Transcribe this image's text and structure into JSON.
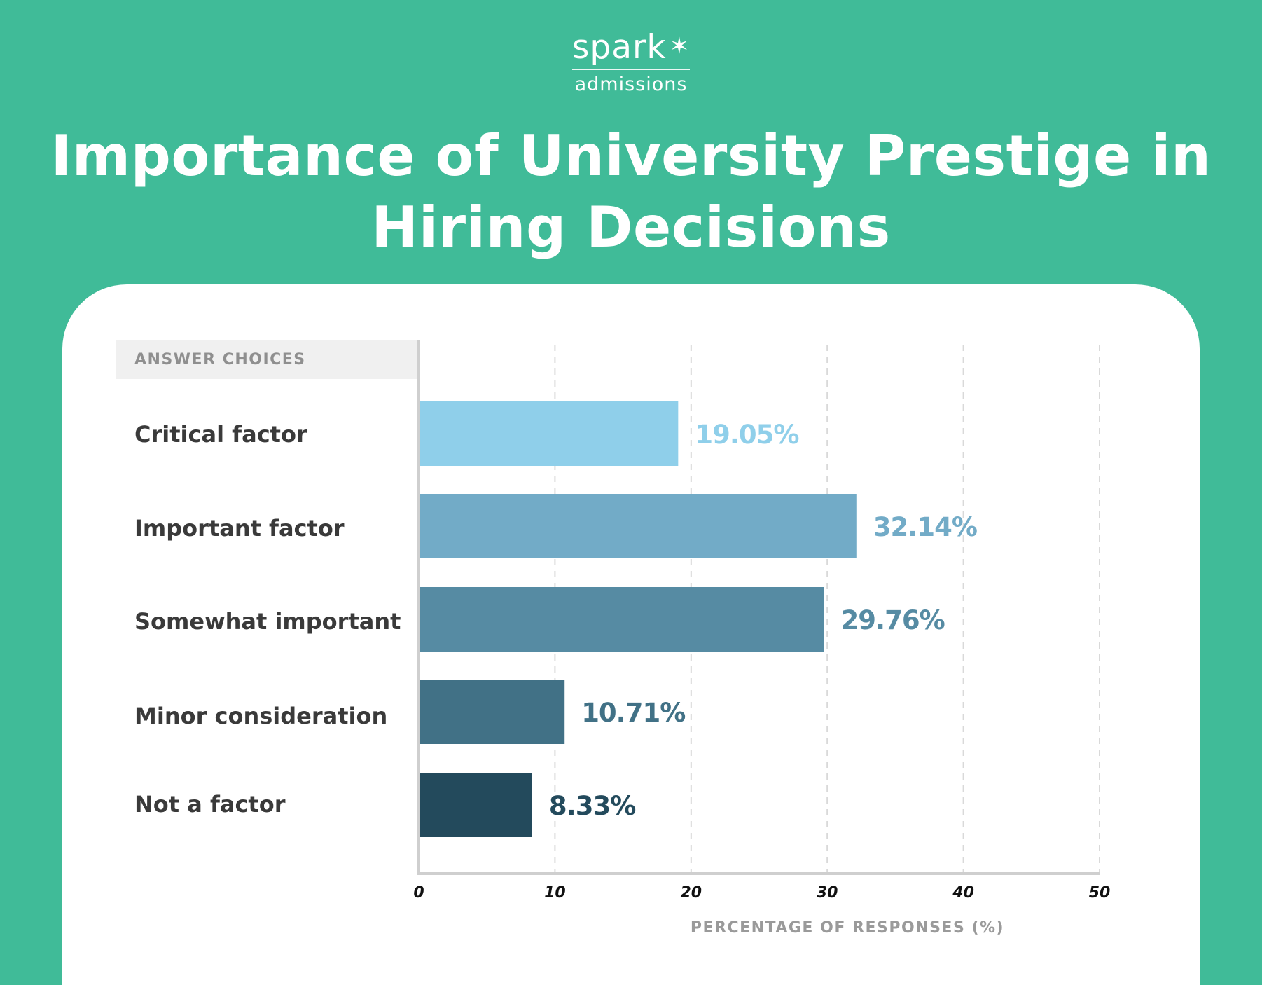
{
  "logo": {
    "top": "spark",
    "star": "✶",
    "sub": "admissions"
  },
  "title": "Importance of University Prestige in Hiring Decisions",
  "colors": {
    "background": "#40bb98",
    "card": "#ffffff",
    "bars": [
      "#8fcfea",
      "#72abc7",
      "#568ba3",
      "#417186",
      "#234a5c"
    ]
  },
  "chart_data": {
    "type": "bar",
    "orientation": "horizontal",
    "category_header": "ANSWER CHOICES",
    "categories": [
      "Critical factor",
      "Important factor",
      "Somewhat important",
      "Minor consideration",
      "Not a factor"
    ],
    "values": [
      19.05,
      32.14,
      29.76,
      10.71,
      8.33
    ],
    "value_labels": [
      "19.05%",
      "32.14%",
      "29.76%",
      "10.71%",
      "8.33%"
    ],
    "xlim": [
      0,
      50
    ],
    "xticks": [
      "0",
      "10",
      "20",
      "30",
      "40",
      "50"
    ],
    "xlabel": "PERCENTAGE OF RESPONSES (%)",
    "grid": "vertical dashed"
  }
}
